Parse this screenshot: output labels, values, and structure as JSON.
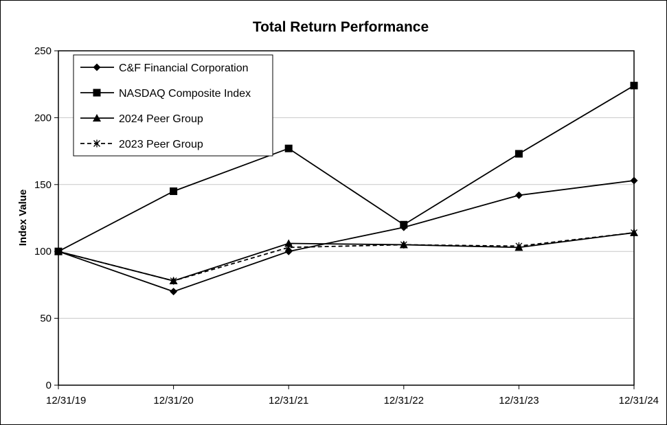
{
  "chart_data": {
    "type": "line",
    "title": "Total Return Performance",
    "xlabel": "",
    "ylabel": "Index Value",
    "categories": [
      "12/31/19",
      "12/31/20",
      "12/31/21",
      "12/31/22",
      "12/31/23",
      "12/31/24"
    ],
    "yticks": [
      "0",
      "50",
      "100",
      "150",
      "200",
      "250"
    ],
    "ylim": [
      0,
      250
    ],
    "grid": true,
    "legend_position": "top-left",
    "series": [
      {
        "name": "C&F Financial Corporation",
        "marker": "diamond",
        "dash": "solid",
        "color": "#000000",
        "values": [
          100,
          70,
          100,
          118,
          142,
          153
        ]
      },
      {
        "name": "NASDAQ Composite Index",
        "marker": "square",
        "dash": "solid",
        "color": "#000000",
        "values": [
          100,
          145,
          177,
          120,
          173,
          224
        ]
      },
      {
        "name": "2024 Peer Group",
        "marker": "triangle",
        "dash": "solid",
        "color": "#000000",
        "values": [
          100,
          78,
          106,
          105,
          103,
          114
        ]
      },
      {
        "name": "2023 Peer Group",
        "marker": "star",
        "dash": "dashed",
        "color": "#000000",
        "values": [
          100,
          78,
          103,
          105,
          104,
          114
        ]
      }
    ]
  }
}
